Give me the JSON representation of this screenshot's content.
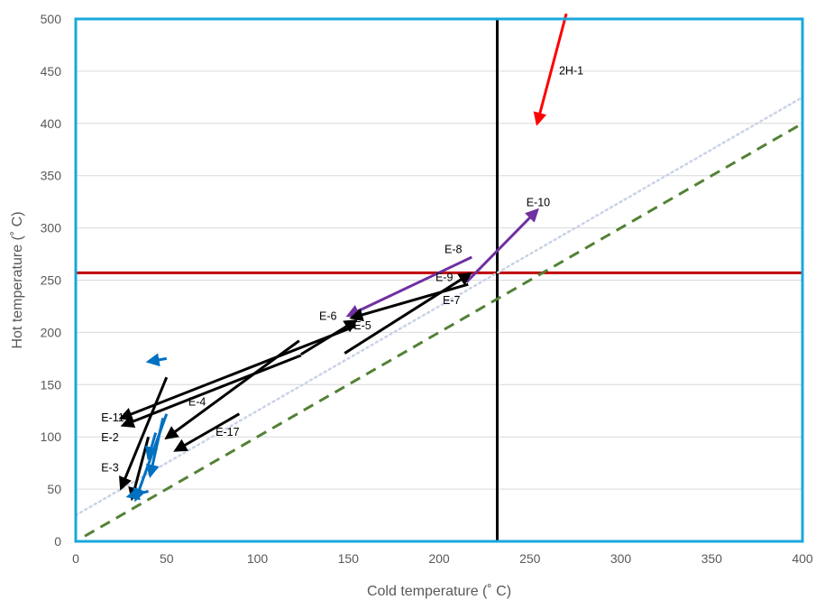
{
  "chart_data": {
    "type": "line",
    "xlabel": "Cold temperature (˚ C)",
    "ylabel": "Hot temperature (˚ C)",
    "xlim": [
      0,
      400
    ],
    "ylim": [
      0,
      500
    ],
    "xticks": [
      0,
      50,
      100,
      150,
      200,
      250,
      300,
      350,
      400
    ],
    "yticks": [
      0,
      50,
      100,
      150,
      200,
      250,
      300,
      350,
      400,
      450,
      500
    ],
    "grid": true,
    "colors": {
      "frame": "#1aa7dc",
      "grid": "#d9d9d9",
      "black_arrow": "#000000",
      "blue_arrow": "#0070c0",
      "purple_arrow": "#7030a0",
      "red_arrow": "#ff0000",
      "hline": "#c00000",
      "vline": "#000000",
      "dashed_green": "#538135",
      "dotted_lightblue": "#c9d3e6"
    },
    "reference_lines": [
      {
        "style": "horizontal",
        "color": "#c00000",
        "y": 257
      },
      {
        "style": "vertical",
        "color": "#000000",
        "x": 232
      },
      {
        "style": "dashed",
        "color": "#538135",
        "points": [
          [
            5,
            5
          ],
          [
            400,
            400
          ]
        ]
      },
      {
        "style": "dotted",
        "color": "#c9d3e6",
        "points": [
          [
            0,
            25
          ],
          [
            400,
            425
          ]
        ]
      }
    ],
    "arrows": [
      {
        "label": "2H-1",
        "color": "#ff0000",
        "from": [
          270,
          505
        ],
        "to": [
          254,
          400
        ]
      },
      {
        "label": "E-10",
        "color": "#7030a0",
        "from": [
          215,
          248
        ],
        "to": [
          254,
          317
        ]
      },
      {
        "label": "E-8",
        "color": "#7030a0",
        "from": [
          218,
          272
        ],
        "to": [
          150,
          216
        ]
      },
      {
        "label": "E-9",
        "color": "#000000",
        "from": [
          216,
          246
        ],
        "to": [
          152,
          214
        ]
      },
      {
        "label": "E-7",
        "color": "#000000",
        "from": [
          148,
          180
        ],
        "to": [
          217,
          256
        ]
      },
      {
        "label": "E-5",
        "color": "#000000",
        "from": [
          124,
          179
        ],
        "to": [
          154,
          211
        ]
      },
      {
        "label": "E-6",
        "color": "#000000",
        "from": [
          154,
          206
        ],
        "to": [
          25,
          118
        ]
      },
      {
        "label": "E-11",
        "color": "#000000",
        "from": [
          124,
          178
        ],
        "to": [
          26,
          111
        ]
      },
      {
        "label": "E-4",
        "color": "#000000",
        "from": [
          123,
          192
        ],
        "to": [
          50,
          99
        ]
      },
      {
        "label": "E-2",
        "color": "#000000",
        "from": [
          50,
          157
        ],
        "to": [
          25,
          51
        ]
      },
      {
        "label": "E-3",
        "color": "#000000",
        "from": [
          40,
          100
        ],
        "to": [
          31,
          41
        ]
      },
      {
        "label": "E-17",
        "color": "#000000",
        "from": [
          90,
          122
        ],
        "to": [
          55,
          87
        ]
      },
      {
        "label": "",
        "color": "#0070c0",
        "from": [
          50,
          122
        ],
        "to": [
          33,
          40
        ]
      },
      {
        "label": "",
        "color": "#0070c0",
        "from": [
          48,
          118
        ],
        "to": [
          41,
          63
        ]
      },
      {
        "label": "",
        "color": "#0070c0",
        "from": [
          44,
          104
        ],
        "to": [
          40,
          80
        ]
      },
      {
        "label": "",
        "color": "#0070c0",
        "from": [
          40,
          48
        ],
        "to": [
          29,
          43
        ]
      },
      {
        "label": "",
        "color": "#0070c0",
        "from": [
          50,
          175
        ],
        "to": [
          40,
          172
        ]
      }
    ],
    "annotations": [
      {
        "text": "2H-1",
        "x": 266,
        "y": 447
      },
      {
        "text": "E-10",
        "x": 248,
        "y": 321
      },
      {
        "text": "E-8",
        "x": 203,
        "y": 276
      },
      {
        "text": "E-9",
        "x": 198,
        "y": 249
      },
      {
        "text": "E-7",
        "x": 202,
        "y": 227
      },
      {
        "text": "E-6",
        "x": 134,
        "y": 212
      },
      {
        "text": "E-5",
        "x": 153,
        "y": 203
      },
      {
        "text": "E-4",
        "x": 62,
        "y": 130
      },
      {
        "text": "E-11",
        "x": 14,
        "y": 115
      },
      {
        "text": "E-2",
        "x": 14,
        "y": 96
      },
      {
        "text": "E-17",
        "x": 77,
        "y": 101
      },
      {
        "text": "E-3",
        "x": 14,
        "y": 67
      }
    ]
  }
}
